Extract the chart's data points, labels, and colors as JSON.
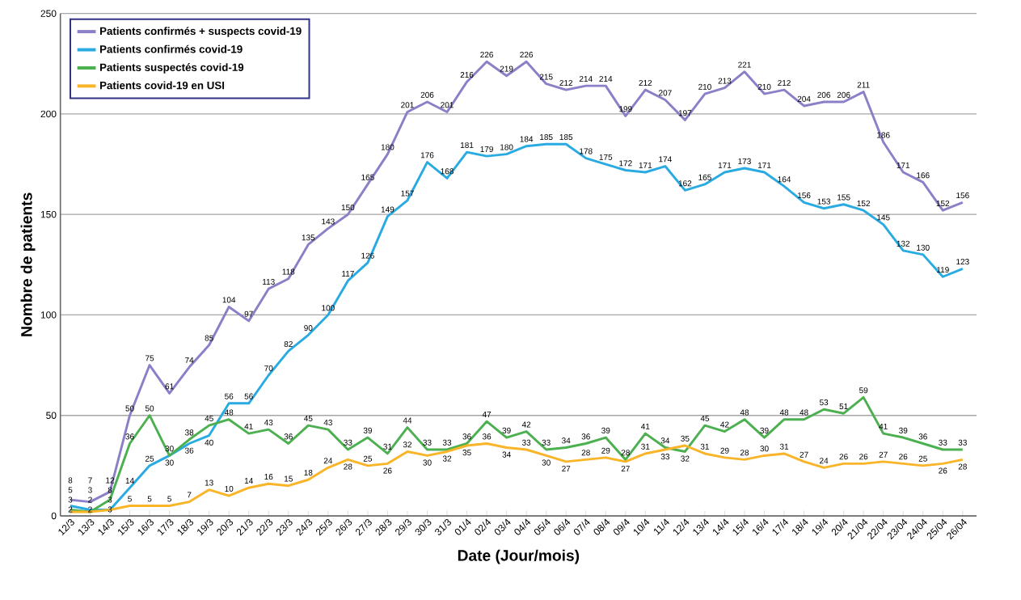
{
  "chart_data": {
    "type": "line",
    "xlabel": "Date (Jour/mois)",
    "ylabel": "Nombre de patients",
    "categories": [
      "12/3",
      "13/3",
      "14/3",
      "15/3",
      "16/3",
      "17/3",
      "18/3",
      "19/3",
      "20/3",
      "21/3",
      "22/3",
      "23/3",
      "24/3",
      "25/3",
      "26/3",
      "27/3",
      "28/3",
      "29/3",
      "30/3",
      "31/3",
      "01/4",
      "02/4",
      "03/4",
      "04/4",
      "05/4",
      "06/4",
      "07/4",
      "08/4",
      "09/4",
      "10/4",
      "11/4",
      "12/4",
      "13/4",
      "14/4",
      "15/4",
      "16/4",
      "17/4",
      "18/4",
      "19/4",
      "20/4",
      "21/04",
      "22/04",
      "23/04",
      "24/04",
      "25/04",
      "26/04"
    ],
    "series": [
      {
        "name": "Patients confirmés + suspects covid-19",
        "color": "#8b7fc7",
        "values": [
          8,
          7,
          12,
          50,
          75,
          61,
          74,
          85,
          104,
          97,
          113,
          118,
          135,
          143,
          150,
          165,
          180,
          201,
          206,
          201,
          216,
          226,
          219,
          226,
          215,
          212,
          214,
          214,
          199,
          212,
          207,
          197,
          210,
          213,
          221,
          210,
          212,
          204,
          206,
          206,
          211,
          186,
          171,
          166,
          152,
          156
        ]
      },
      {
        "name": "Patients confirmés covid-19",
        "color": "#29abe2",
        "values": [
          5,
          3,
          3,
          14,
          25,
          30,
          36,
          40,
          56,
          56,
          70,
          82,
          90,
          100,
          117,
          126,
          149,
          157,
          176,
          168,
          181,
          179,
          180,
          184,
          185,
          185,
          178,
          175,
          172,
          171,
          174,
          162,
          165,
          171,
          173,
          171,
          164,
          156,
          153,
          155,
          152,
          145,
          132,
          130,
          119,
          123
        ]
      },
      {
        "name": "Patients suspectés covid-19",
        "color": "#4cb050",
        "values": [
          3,
          2,
          8,
          36,
          50,
          30,
          38,
          45,
          48,
          41,
          43,
          36,
          45,
          43,
          33,
          39,
          31,
          44,
          33,
          33,
          36,
          47,
          39,
          42,
          33,
          34,
          36,
          39,
          28,
          41,
          34,
          32,
          45,
          42,
          48,
          39,
          48,
          48,
          53,
          51,
          59,
          41,
          39,
          36,
          33,
          33
        ]
      },
      {
        "name": "Patients covid-19 en USI",
        "color": "#f9b428",
        "values": [
          2,
          2,
          3,
          5,
          5,
          5,
          7,
          13,
          10,
          14,
          16,
          15,
          18,
          24,
          28,
          25,
          26,
          32,
          30,
          32,
          35,
          36,
          34,
          33,
          30,
          27,
          28,
          29,
          27,
          31,
          33,
          35,
          31,
          29,
          28,
          30,
          31,
          27,
          24,
          26,
          26,
          27,
          26,
          25,
          26,
          28
        ]
      }
    ],
    "ylim": [
      0,
      250
    ],
    "yticks": [
      0,
      50,
      100,
      150,
      200,
      250
    ],
    "grid": "y",
    "legend": "top left",
    "marker": "none",
    "line_style": "solid",
    "data_labels": true
  }
}
